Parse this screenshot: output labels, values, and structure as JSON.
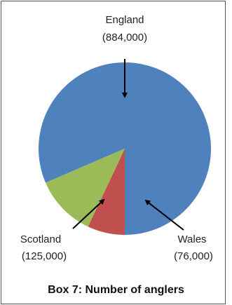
{
  "caption": "Box 7: Number of anglers",
  "chart_data": {
    "type": "pie",
    "title": "",
    "slices": [
      {
        "name": "England",
        "value": 884000,
        "value_label": "(884,000)",
        "color": "#4F81BD"
      },
      {
        "name": "Wales",
        "value": 76000,
        "value_label": "(76,000)",
        "color": "#C0504D"
      },
      {
        "name": "Scotland",
        "value": 125000,
        "value_label": "(125,000)",
        "color": "#9BBB59"
      }
    ],
    "labels_outside": true,
    "leader_arrows": true,
    "legend": "none"
  }
}
